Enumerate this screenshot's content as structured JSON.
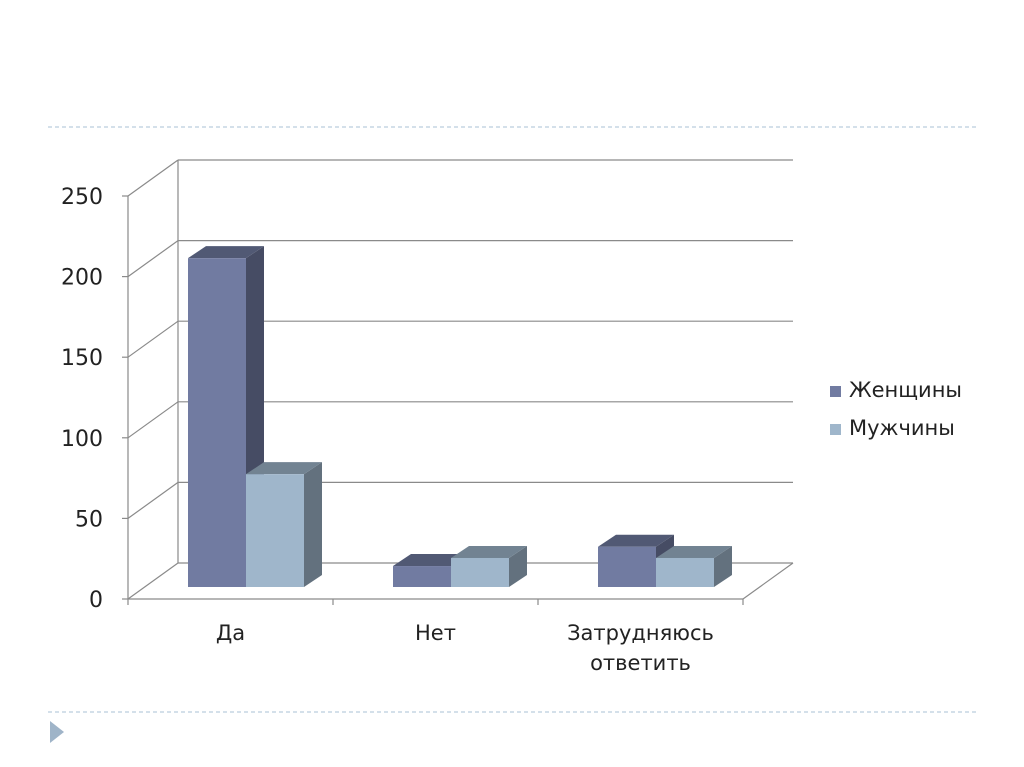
{
  "slide": {
    "divider_color": "#a9c1d6",
    "bullet_icon": "triangle-right-icon",
    "bullet_color": "#9fb4c8"
  },
  "chart_data": {
    "type": "bar",
    "style": "3d-clustered-column",
    "categories": [
      "Да",
      "Нет",
      "Затрудняюсь ответить"
    ],
    "series": [
      {
        "name": "Женщины",
        "values": [
          204,
          13,
          25
        ],
        "color": "#717ba1"
      },
      {
        "name": "Мужчины",
        "values": [
          70,
          18,
          18
        ],
        "color": "#9fb6cb"
      }
    ],
    "yticks": [
      0,
      50,
      100,
      150,
      200,
      250
    ],
    "ylim": [
      0,
      250
    ],
    "grid": true,
    "legend": "right",
    "title": "",
    "xlabel": "",
    "ylabel": ""
  }
}
